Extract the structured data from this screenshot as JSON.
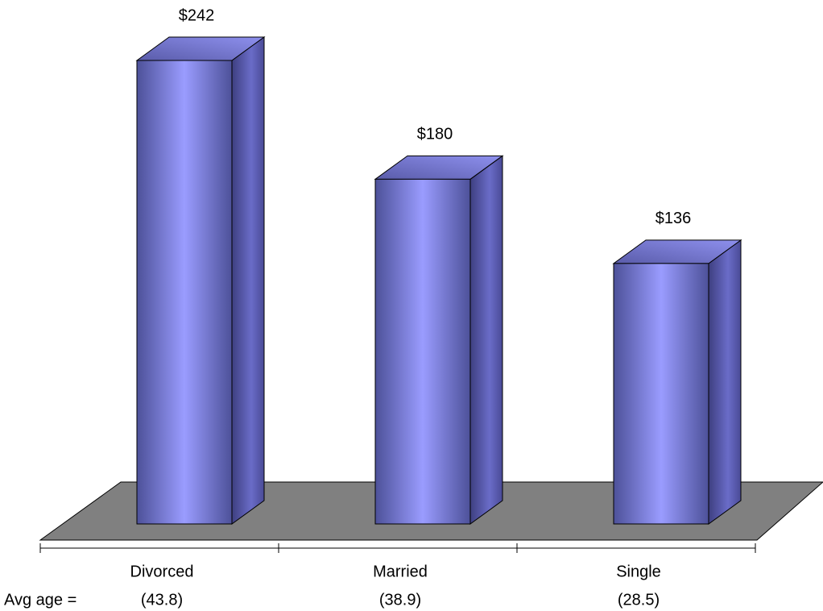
{
  "chart_data": {
    "type": "bar3d",
    "categories": [
      "Divorced",
      "Married",
      "Single"
    ],
    "values": [
      242,
      180,
      136
    ],
    "value_labels": [
      "$242",
      "$180",
      "$136"
    ],
    "row_label": "Avg age =",
    "age_labels": [
      "(43.8)",
      "(38.9)",
      "(28.5)"
    ],
    "color": "#9999ff",
    "floor_color": "#808080"
  }
}
